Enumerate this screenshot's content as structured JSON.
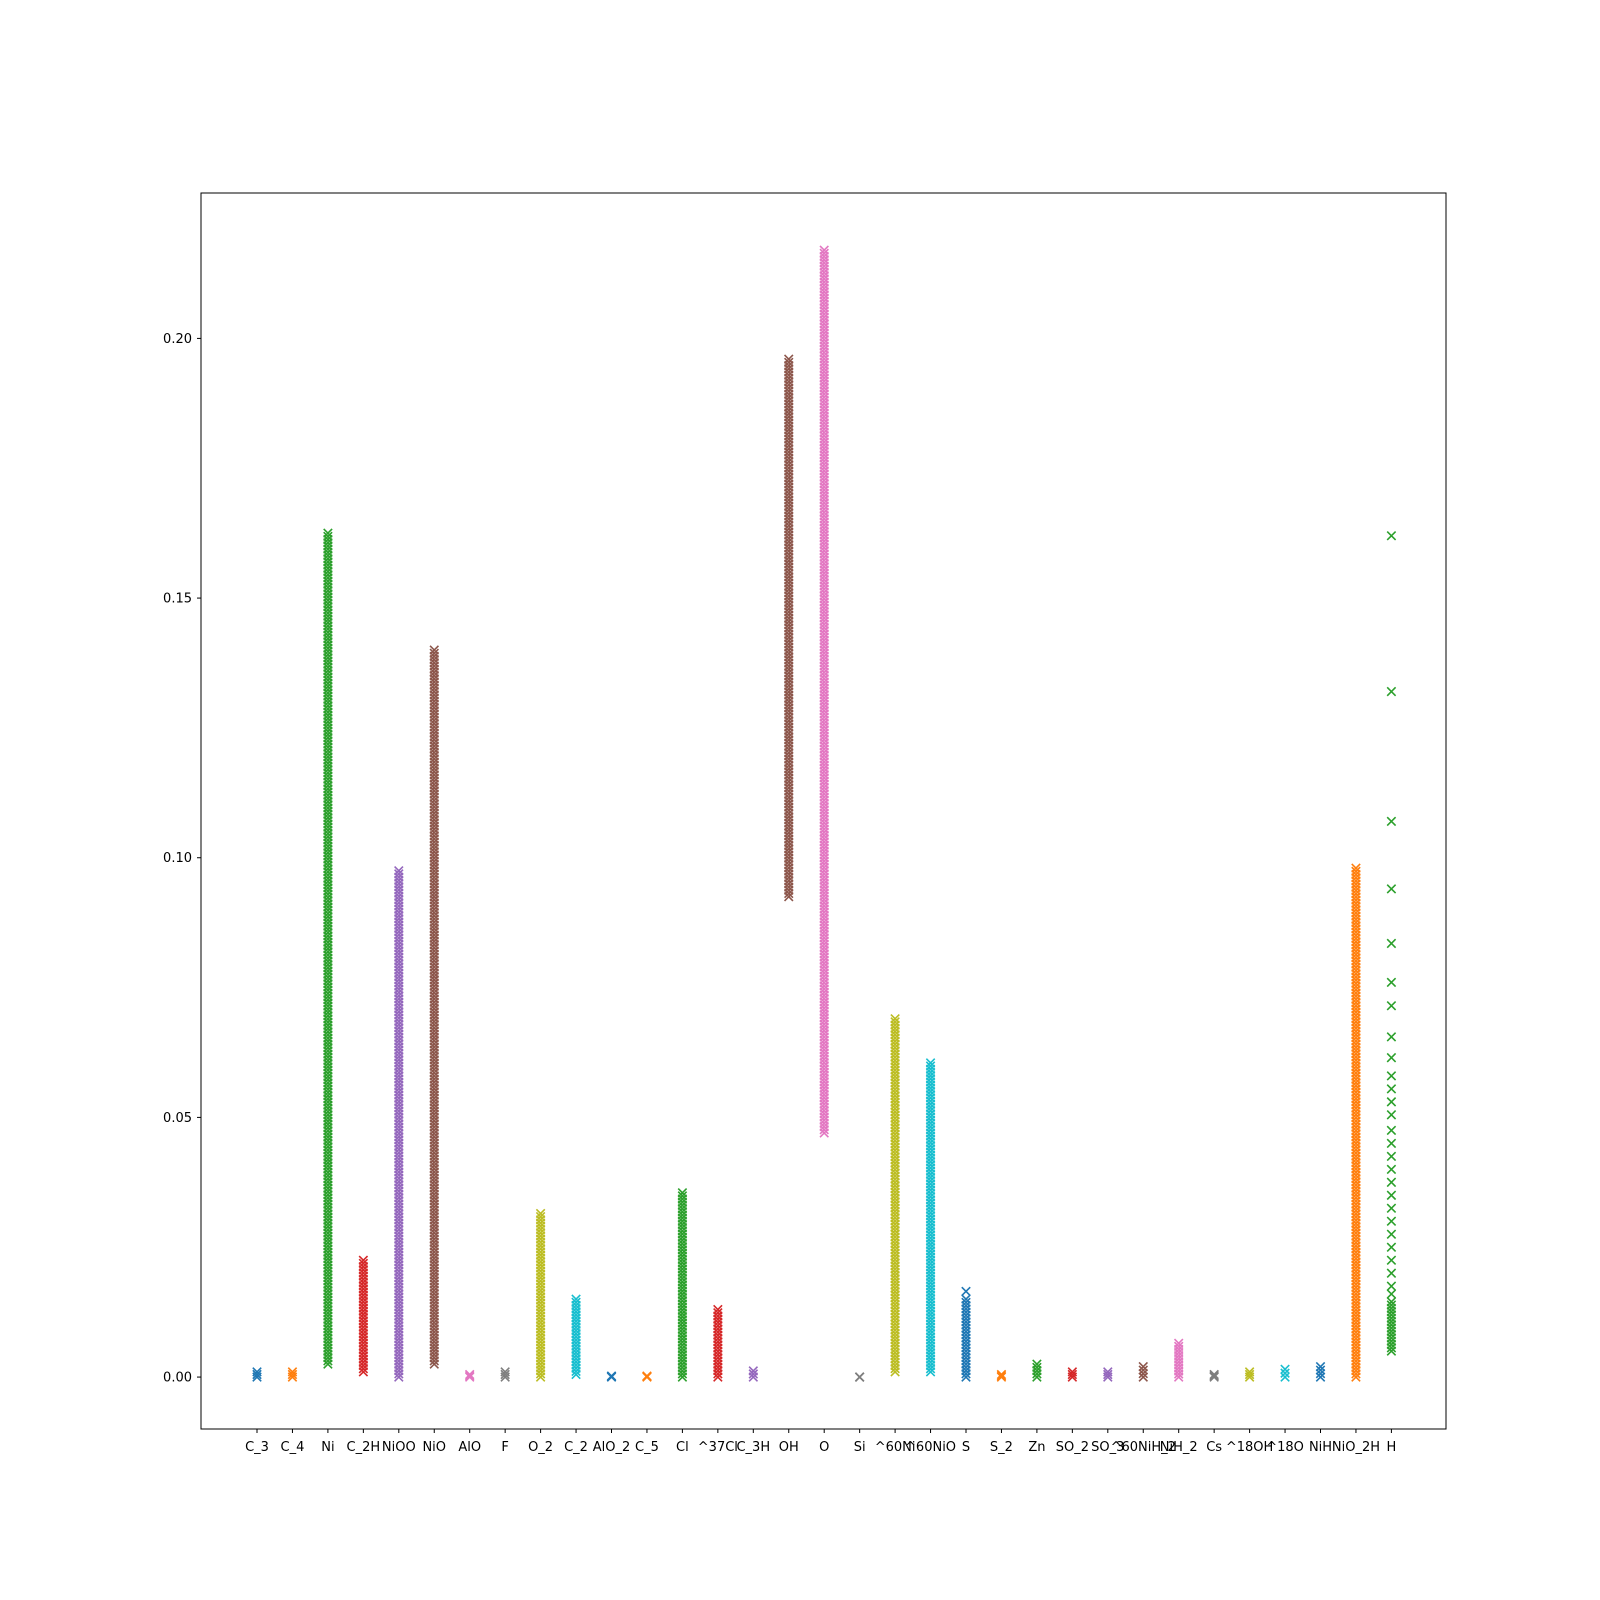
{
  "chart_data": {
    "type": "scatter",
    "marker": "x",
    "title": "",
    "xlabel": "",
    "ylabel": "",
    "ylim": [
      -0.01,
      0.228
    ],
    "yticks": [
      0.0,
      0.05,
      0.1,
      0.15,
      0.2
    ],
    "ytick_labels": [
      "0.00",
      "0.05",
      "0.10",
      "0.15",
      "0.20"
    ],
    "grid": false,
    "categories": [
      "C_3",
      "C_4",
      "Ni",
      "C_2H",
      "NiOO",
      "NiO",
      "AlO",
      "F",
      "O_2",
      "C_2",
      "AlO_2",
      "C_5",
      "Cl",
      "^37Cl",
      "C_3H",
      "OH",
      "O",
      "Si",
      "^60Ni",
      "^60NiO",
      "S",
      "S_2",
      "Zn",
      "SO_2",
      "SO_3",
      "^60NiH_2",
      "NiH_2",
      "Cs",
      "^18OH",
      "^18O",
      "NiH",
      "NiO_2H",
      "H"
    ],
    "series": [
      {
        "category": "C_3",
        "color": "#1f77b4",
        "min": 0.0,
        "max": 0.001,
        "sparse_above": []
      },
      {
        "category": "C_4",
        "color": "#ff7f0e",
        "min": 0.0,
        "max": 0.001,
        "sparse_above": []
      },
      {
        "category": "Ni",
        "color": "#2ca02c",
        "min": 0.0025,
        "max": 0.1625,
        "sparse_above": []
      },
      {
        "category": "C_2H",
        "color": "#d62728",
        "min": 0.001,
        "max": 0.0225,
        "sparse_above": []
      },
      {
        "category": "NiOO",
        "color": "#9467bd",
        "min": 0.0,
        "max": 0.0975,
        "sparse_above": []
      },
      {
        "category": "NiO",
        "color": "#8c564b",
        "min": 0.0025,
        "max": 0.14,
        "sparse_above": []
      },
      {
        "category": "AlO",
        "color": "#e377c2",
        "min": 0.0,
        "max": 0.0005,
        "sparse_above": []
      },
      {
        "category": "F",
        "color": "#7f7f7f",
        "min": 0.0,
        "max": 0.001,
        "sparse_above": []
      },
      {
        "category": "O_2",
        "color": "#bcbd22",
        "min": 0.0,
        "max": 0.0315,
        "sparse_above": []
      },
      {
        "category": "C_2",
        "color": "#17becf",
        "min": 0.0005,
        "max": 0.015,
        "sparse_above": []
      },
      {
        "category": "AlO_2",
        "color": "#1f77b4",
        "min": 0.0,
        "max": 0.0002,
        "sparse_above": []
      },
      {
        "category": "C_5",
        "color": "#ff7f0e",
        "min": 0.0,
        "max": 0.0002,
        "sparse_above": []
      },
      {
        "category": "Cl",
        "color": "#2ca02c",
        "min": 0.0,
        "max": 0.0355,
        "sparse_above": []
      },
      {
        "category": "^37Cl",
        "color": "#d62728",
        "min": 0.0,
        "max": 0.013,
        "sparse_above": []
      },
      {
        "category": "C_3H",
        "color": "#9467bd",
        "min": 0.0,
        "max": 0.0012,
        "sparse_above": []
      },
      {
        "category": "OH",
        "color": "#8c564b",
        "min": 0.0925,
        "max": 0.196,
        "sparse_above": []
      },
      {
        "category": "O",
        "color": "#e377c2",
        "min": 0.047,
        "max": 0.217,
        "sparse_above": []
      },
      {
        "category": "Si",
        "color": "#7f7f7f",
        "min": 0.0,
        "max": 0.0,
        "sparse_above": []
      },
      {
        "category": "^60Ni",
        "color": "#bcbd22",
        "min": 0.001,
        "max": 0.069,
        "sparse_above": []
      },
      {
        "category": "^60NiO",
        "color": "#17becf",
        "min": 0.001,
        "max": 0.0605,
        "sparse_above": []
      },
      {
        "category": "S",
        "color": "#1f77b4",
        "min": 0.0,
        "max": 0.015,
        "sparse_above": [
          0.0165
        ]
      },
      {
        "category": "S_2",
        "color": "#ff7f0e",
        "min": 0.0,
        "max": 0.0005,
        "sparse_above": []
      },
      {
        "category": "Zn",
        "color": "#2ca02c",
        "min": 0.0,
        "max": 0.0025,
        "sparse_above": []
      },
      {
        "category": "SO_2",
        "color": "#d62728",
        "min": 0.0,
        "max": 0.001,
        "sparse_above": []
      },
      {
        "category": "SO_3",
        "color": "#9467bd",
        "min": 0.0,
        "max": 0.001,
        "sparse_above": []
      },
      {
        "category": "^60NiH_2",
        "color": "#8c564b",
        "min": 0.0,
        "max": 0.002,
        "sparse_above": []
      },
      {
        "category": "NiH_2",
        "color": "#e377c2",
        "min": 0.0,
        "max": 0.0065,
        "sparse_above": []
      },
      {
        "category": "Cs",
        "color": "#7f7f7f",
        "min": 0.0,
        "max": 0.0005,
        "sparse_above": []
      },
      {
        "category": "^18OH",
        "color": "#bcbd22",
        "min": 0.0,
        "max": 0.001,
        "sparse_above": []
      },
      {
        "category": "^18O",
        "color": "#17becf",
        "min": 0.0,
        "max": 0.0015,
        "sparse_above": []
      },
      {
        "category": "NiH",
        "color": "#1f77b4",
        "min": 0.0,
        "max": 0.002,
        "sparse_above": []
      },
      {
        "category": "NiO_2H",
        "color": "#ff7f0e",
        "min": 0.0,
        "max": 0.098,
        "sparse_above": []
      },
      {
        "category": "H",
        "color": "#2ca02c",
        "min": 0.005,
        "max": 0.0145,
        "sparse_above": [
          0.162,
          0.132,
          0.107,
          0.094,
          0.0835,
          0.076,
          0.0715,
          0.0655,
          0.0615,
          0.058,
          0.0555,
          0.053,
          0.0505,
          0.0475,
          0.045,
          0.0425,
          0.04,
          0.0375,
          0.035,
          0.0325,
          0.03,
          0.0275,
          0.025,
          0.0225,
          0.02,
          0.0175,
          0.016
        ]
      }
    ]
  }
}
